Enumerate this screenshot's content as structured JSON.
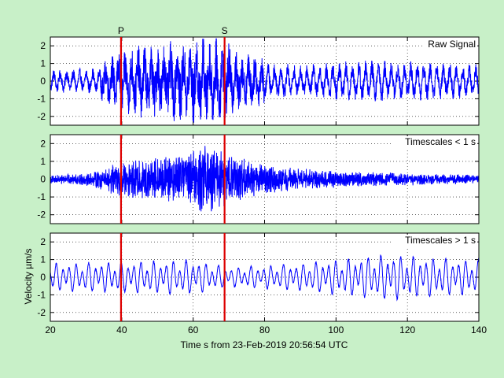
{
  "chart_data": [
    {
      "type": "line",
      "title": "Raw Signal",
      "xlim": [
        20,
        140
      ],
      "ylim": [
        -2.5,
        2.5
      ],
      "yticks": [
        -2,
        -1,
        0,
        1,
        2
      ],
      "grid": true,
      "series": [
        {
          "color": "#0000ff",
          "amplitude_profile": [
            [
              20,
              0.7
            ],
            [
              34,
              0.8
            ],
            [
              38,
              1.2
            ],
            [
              45,
              1.6
            ],
            [
              55,
              1.7
            ],
            [
              62,
              2.0
            ],
            [
              68,
              1.8
            ],
            [
              75,
              1.2
            ],
            [
              90,
              1.0
            ],
            [
              110,
              1.3
            ],
            [
              125,
              1.2
            ],
            [
              140,
              1.0
            ]
          ]
        }
      ]
    },
    {
      "type": "line",
      "title": "Timescales < 1 s",
      "xlim": [
        20,
        140
      ],
      "ylim": [
        -2.5,
        2.5
      ],
      "yticks": [
        -2,
        -1,
        0,
        1,
        2
      ],
      "grid": true,
      "series": [
        {
          "color": "#0000ff",
          "amplitude_profile": [
            [
              20,
              0.2
            ],
            [
              30,
              0.3
            ],
            [
              34,
              0.5
            ],
            [
              40,
              0.9
            ],
            [
              48,
              1.0
            ],
            [
              55,
              1.1
            ],
            [
              62,
              1.7
            ],
            [
              66,
              1.5
            ],
            [
              72,
              1.1
            ],
            [
              80,
              0.7
            ],
            [
              90,
              0.5
            ],
            [
              100,
              0.4
            ],
            [
              110,
              0.35
            ],
            [
              140,
              0.2
            ]
          ]
        }
      ]
    },
    {
      "type": "line",
      "title": "Timescales > 1 s",
      "ylabel": "Velocity µm/s",
      "xlabel": "Time s from 23-Feb-2019 20:56:54 UTC",
      "xlim": [
        20,
        140
      ],
      "xticks": [
        20,
        40,
        60,
        80,
        100,
        120,
        140
      ],
      "ylim": [
        -2.5,
        2.5
      ],
      "yticks": [
        -2,
        -1,
        0,
        1,
        2
      ],
      "grid": true,
      "series": [
        {
          "color": "#0000ff",
          "amplitude_profile": [
            [
              20,
              0.7
            ],
            [
              40,
              0.8
            ],
            [
              60,
              0.9
            ],
            [
              70,
              0.5
            ],
            [
              90,
              0.7
            ],
            [
              115,
              1.2
            ],
            [
              125,
              1.0
            ],
            [
              140,
              0.9
            ]
          ]
        }
      ]
    }
  ],
  "markers": [
    {
      "label": "P",
      "x": 39.8,
      "color": "#dd0000"
    },
    {
      "label": "S",
      "x": 68.8,
      "color": "#dd0000"
    }
  ]
}
